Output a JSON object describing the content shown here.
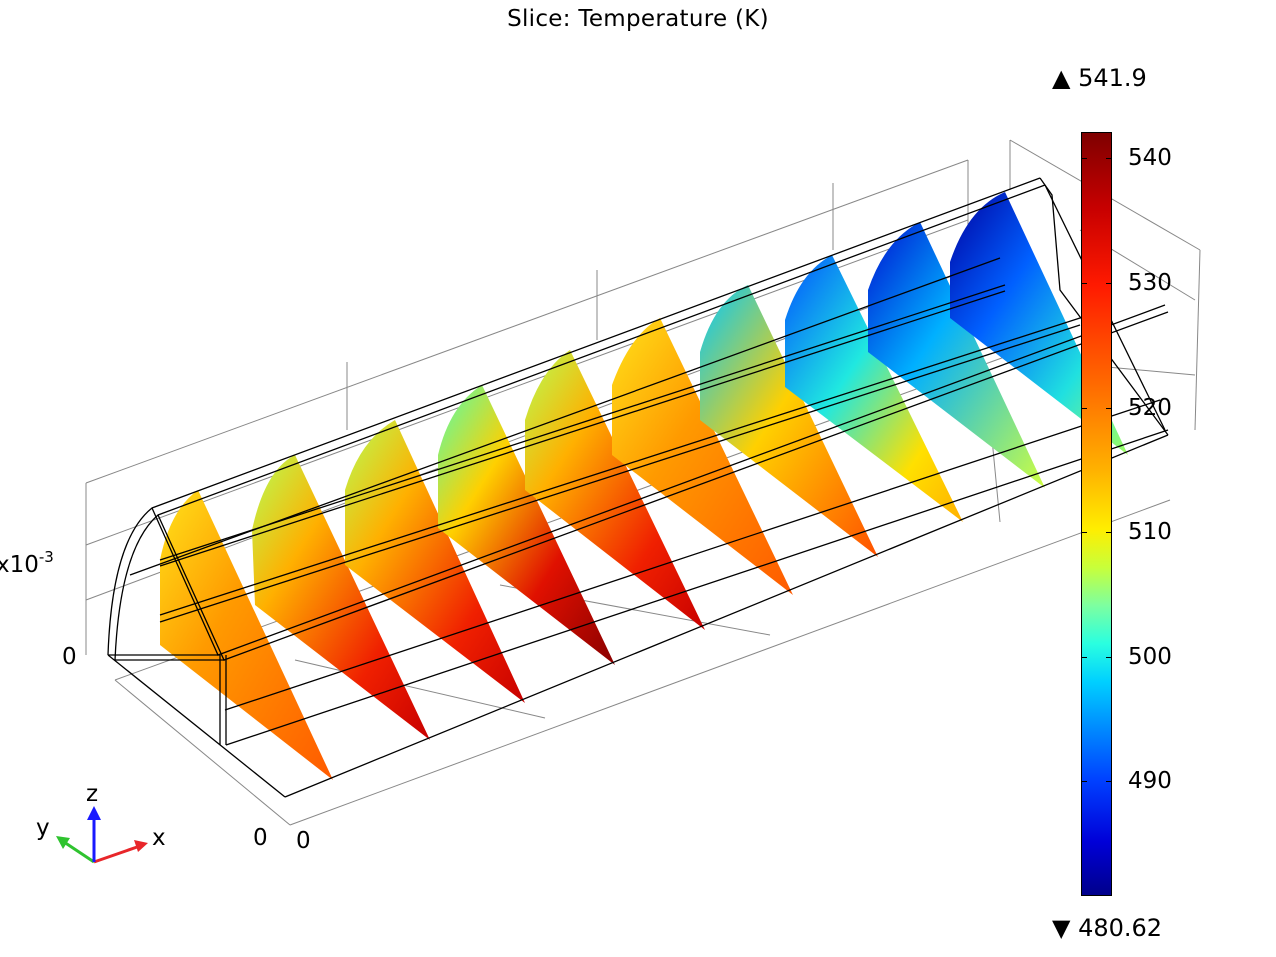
{
  "title": "Slice: Temperature (K)",
  "colorbar": {
    "max_label": "▲ 541.9",
    "min_label": "▼ 480.62",
    "max": 541.9,
    "min": 480.62,
    "ticks": [
      "540",
      "530",
      "520",
      "510",
      "500",
      "490"
    ],
    "colormap": "rainbow"
  },
  "axes": {
    "scale_label": "x10",
    "scale_exponent": "-3",
    "tick_z0": "0",
    "tick_y0": "0",
    "tick_x0": "0"
  },
  "triad": {
    "x": "x",
    "y": "y",
    "z": "z"
  },
  "colors": {
    "x_axis": "#e8262a",
    "y_axis": "#2fc32f",
    "z_axis": "#1a1aff"
  },
  "slices": [
    {
      "index": 1,
      "tint": "warm"
    },
    {
      "index": 2,
      "tint": "hot"
    },
    {
      "index": 3,
      "tint": "hot"
    },
    {
      "index": 4,
      "tint": "hottest"
    },
    {
      "index": 5,
      "tint": "hot"
    },
    {
      "index": 6,
      "tint": "warm"
    },
    {
      "index": 7,
      "tint": "mild"
    },
    {
      "index": 8,
      "tint": "cool"
    },
    {
      "index": 9,
      "tint": "cold"
    },
    {
      "index": 10,
      "tint": "coldest"
    }
  ]
}
